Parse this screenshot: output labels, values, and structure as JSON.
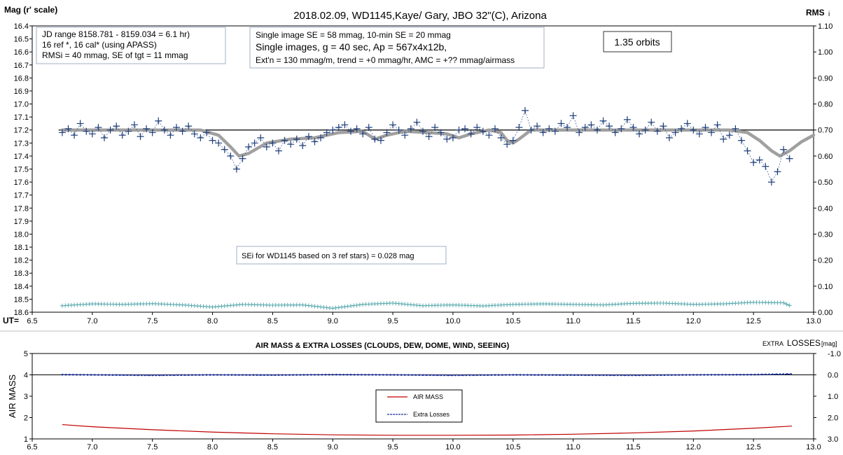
{
  "top": {
    "title": "2018.02.09,  WD1145,Kaye/ Gary, JBO 32\"(C), Arizona",
    "ylabel_left": "Mag (r' scale)",
    "ylabel_right_main": "RMS",
    "ylabel_right_sub": "i",
    "xlabel": "UT=",
    "box1": [
      "JD range  8158.781 - 8159.034  = 6.1 hr)",
      "16 ref *, 16 cal* (using APASS)",
      "RMSi = 40 mmag, SE of tgt = 11 mmag"
    ],
    "box2": [
      "Single image SE = 58 mmag, 10-min SE = 20 mmag",
      "Single images, g = 40 sec, Ap = 567x4x12b,",
      "Ext'n = 130 mmag/m, trend = +0 mmag/hr, AMC = +?? mmag/airmass"
    ],
    "box3": "1.35 orbits",
    "box4": "SEi for WD1145 based on 3 ref stars) = 0.028 mag",
    "left_ticks": [
      "16.4",
      "16.5",
      "16.6",
      "16.7",
      "16.8",
      "16.9",
      "17.0",
      "17.1",
      "17.2",
      "17.3",
      "17.4",
      "17.5",
      "17.6",
      "17.7",
      "17.8",
      "17.9",
      "18.0",
      "18.1",
      "18.2",
      "18.3",
      "18.4",
      "18.5",
      "18.6"
    ],
    "right_ticks": [
      "1.10",
      "1.00",
      "0.90",
      "0.80",
      "0.70",
      "0.60",
      "0.50",
      "0.40",
      "0.30",
      "0.20",
      "0.10",
      "0.00"
    ],
    "x_ticks": [
      "6.5",
      "7.0",
      "7.5",
      "8.0",
      "8.5",
      "9.0",
      "9.5",
      "10.0",
      "10.5",
      "11.0",
      "11.5",
      "12.0",
      "12.5",
      "13.0"
    ]
  },
  "bottom": {
    "title": "AIR MASS & EXTRA LOSSES (CLOUDS, DEW, DOME, WIND, SEEING)",
    "ylabel_left": "AIR MASS",
    "ylabel_right_prefix": "EXTRA",
    "ylabel_right_main": "LOSSES",
    "ylabel_right_unit": "[mag]",
    "legend": [
      "AIR MASS",
      "Extra Losses"
    ],
    "left_ticks": [
      "5",
      "4",
      "3",
      "2",
      "1"
    ],
    "right_ticks": [
      "-1.0",
      "0.0",
      "1.0",
      "2.0",
      "3.0"
    ],
    "x_ticks": [
      "6.5",
      "7.0",
      "7.5",
      "8.0",
      "8.5",
      "9.0",
      "9.5",
      "10.0",
      "10.5",
      "11.0",
      "11.5",
      "12.0",
      "12.5",
      "13.0"
    ]
  },
  "colors": {
    "data_points": "#1f3f7a",
    "trend_line": "#a0a0a0",
    "reference_line": "#000000",
    "rms_points": "#5aa9ae",
    "airmass": "#c00000",
    "extra_losses": "#1a2f9a"
  },
  "chart_data": [
    {
      "type": "scatter",
      "xlabel": "UT=",
      "ylabel": "Mag (r' scale)",
      "xlim": [
        6.5,
        13.0
      ],
      "ylim": [
        18.6,
        16.4
      ],
      "y2lim": [
        0.0,
        1.1
      ],
      "reference_mag": 17.2,
      "series": [
        {
          "role": "magnitude",
          "x": [
            6.75,
            6.8,
            6.85,
            6.9,
            6.95,
            7.0,
            7.05,
            7.1,
            7.15,
            7.2,
            7.25,
            7.3,
            7.35,
            7.4,
            7.45,
            7.5,
            7.55,
            7.6,
            7.65,
            7.7,
            7.75,
            7.8,
            7.85,
            7.9,
            7.95,
            8.0,
            8.05,
            8.1,
            8.15,
            8.2,
            8.25,
            8.3,
            8.35,
            8.4,
            8.45,
            8.5,
            8.55,
            8.6,
            8.65,
            8.7,
            8.75,
            8.8,
            8.85,
            8.9,
            8.95,
            9.0,
            9.05,
            9.1,
            9.15,
            9.2,
            9.25,
            9.3,
            9.35,
            9.4,
            9.45,
            9.5,
            9.55,
            9.6,
            9.65,
            9.7,
            9.75,
            9.8,
            9.85,
            9.9,
            9.95,
            10.0,
            10.05,
            10.1,
            10.15,
            10.2,
            10.25,
            10.3,
            10.35,
            10.4,
            10.45,
            10.5,
            10.55,
            10.6,
            10.65,
            10.7,
            10.75,
            10.8,
            10.85,
            10.9,
            10.95,
            11.0,
            11.05,
            11.1,
            11.15,
            11.2,
            11.25,
            11.3,
            11.35,
            11.4,
            11.45,
            11.5,
            11.55,
            11.6,
            11.65,
            11.7,
            11.75,
            11.8,
            11.85,
            11.9,
            11.95,
            12.0,
            12.05,
            12.1,
            12.15,
            12.2,
            12.25,
            12.3,
            12.35,
            12.4,
            12.45,
            12.5,
            12.55,
            12.6,
            12.65,
            12.7,
            12.75,
            12.8
          ],
          "y": [
            17.22,
            17.19,
            17.24,
            17.15,
            17.21,
            17.23,
            17.18,
            17.26,
            17.2,
            17.17,
            17.24,
            17.21,
            17.16,
            17.25,
            17.19,
            17.22,
            17.13,
            17.2,
            17.24,
            17.18,
            17.21,
            17.17,
            17.23,
            17.26,
            17.22,
            17.28,
            17.3,
            17.35,
            17.4,
            17.5,
            17.42,
            17.33,
            17.3,
            17.26,
            17.33,
            17.3,
            17.36,
            17.28,
            17.31,
            17.27,
            17.32,
            17.25,
            17.29,
            17.26,
            17.22,
            17.2,
            17.18,
            17.16,
            17.21,
            17.19,
            17.23,
            17.18,
            17.27,
            17.28,
            17.22,
            17.16,
            17.2,
            17.24,
            17.19,
            17.14,
            17.21,
            17.25,
            17.18,
            17.22,
            17.27,
            17.26,
            17.2,
            17.19,
            17.23,
            17.18,
            17.21,
            17.24,
            17.19,
            17.26,
            17.31,
            17.28,
            17.18,
            17.05,
            17.2,
            17.17,
            17.22,
            17.19,
            17.21,
            17.15,
            17.18,
            17.09,
            17.22,
            17.18,
            17.16,
            17.2,
            17.13,
            17.17,
            17.22,
            17.19,
            17.12,
            17.18,
            17.23,
            17.2,
            17.14,
            17.21,
            17.17,
            17.26,
            17.22,
            17.19,
            17.15,
            17.2,
            17.23,
            17.18,
            17.22,
            17.16,
            17.27,
            17.24,
            17.19,
            17.28,
            17.36,
            17.45,
            17.43,
            17.48,
            17.6,
            17.52,
            17.35,
            17.42
          ]
        },
        {
          "role": "trend",
          "x": [
            6.75,
            7.0,
            7.5,
            7.9,
            8.05,
            8.15,
            8.22,
            8.3,
            8.45,
            8.65,
            8.85,
            9.05,
            9.25,
            9.3,
            9.35,
            9.45,
            9.6,
            9.8,
            9.95,
            10.05,
            10.15,
            10.3,
            10.4,
            10.45,
            10.5,
            10.55,
            10.65,
            10.9,
            11.5,
            12.0,
            12.3,
            12.45,
            12.55,
            12.65,
            12.72,
            12.8,
            12.9,
            13.0
          ],
          "y": [
            17.2,
            17.2,
            17.2,
            17.2,
            17.24,
            17.33,
            17.4,
            17.38,
            17.3,
            17.27,
            17.26,
            17.22,
            17.21,
            17.24,
            17.27,
            17.24,
            17.21,
            17.22,
            17.23,
            17.26,
            17.23,
            17.2,
            17.22,
            17.28,
            17.3,
            17.27,
            17.2,
            17.2,
            17.2,
            17.2,
            17.2,
            17.22,
            17.28,
            17.36,
            17.4,
            17.36,
            17.29,
            17.24
          ]
        },
        {
          "role": "rms_i",
          "x": [
            6.75,
            7.0,
            7.25,
            7.5,
            7.75,
            8.0,
            8.25,
            8.5,
            8.75,
            9.0,
            9.25,
            9.5,
            9.75,
            10.0,
            10.25,
            10.5,
            10.75,
            11.0,
            11.25,
            11.5,
            11.75,
            12.0,
            12.25,
            12.5,
            12.75,
            12.82
          ],
          "y": [
            0.025,
            0.032,
            0.03,
            0.033,
            0.028,
            0.02,
            0.03,
            0.027,
            0.028,
            0.015,
            0.03,
            0.035,
            0.025,
            0.028,
            0.024,
            0.03,
            0.032,
            0.03,
            0.028,
            0.034,
            0.035,
            0.03,
            0.032,
            0.038,
            0.036,
            0.022
          ]
        }
      ]
    },
    {
      "type": "line",
      "title": "AIR MASS & EXTRA LOSSES (CLOUDS, DEW, DOME, WIND, SEEING)",
      "xlabel": "",
      "ylabel": "AIR MASS",
      "xlim": [
        6.5,
        13.0
      ],
      "ylim": [
        1,
        5
      ],
      "y2lim": [
        3.0,
        -1.0
      ],
      "legend_position": "center",
      "series": [
        {
          "name": "AIR MASS",
          "x": [
            6.75,
            7.0,
            7.5,
            8.0,
            8.5,
            9.0,
            9.5,
            10.0,
            10.5,
            11.0,
            11.5,
            12.0,
            12.5,
            12.82
          ],
          "y": [
            1.67,
            1.57,
            1.43,
            1.32,
            1.24,
            1.19,
            1.17,
            1.17,
            1.18,
            1.22,
            1.28,
            1.37,
            1.5,
            1.6
          ]
        },
        {
          "name": "Extra Losses",
          "x": [
            6.75,
            7.0,
            7.5,
            8.0,
            8.5,
            9.0,
            9.5,
            10.0,
            10.5,
            11.0,
            11.5,
            12.0,
            12.5,
            12.82
          ],
          "y": [
            -0.01,
            0.0,
            0.02,
            0.0,
            0.01,
            -0.01,
            0.0,
            0.02,
            0.0,
            0.01,
            0.02,
            0.0,
            -0.01,
            -0.04
          ]
        }
      ]
    }
  ]
}
